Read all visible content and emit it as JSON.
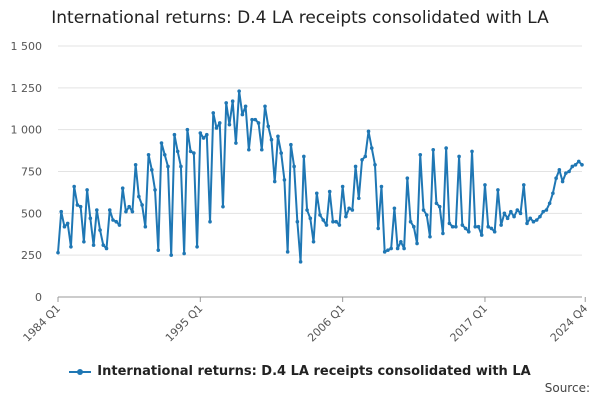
{
  "chart_data": {
    "type": "line",
    "title": "International returns: D.4 LA receipts consolidated with LA",
    "xlabel": "",
    "ylabel": "",
    "ylim": [
      0,
      1500
    ],
    "y_ticks": [
      0,
      250,
      500,
      750,
      1000,
      1250,
      1500
    ],
    "y_tick_labels": [
      "0",
      "250",
      "500",
      "750",
      "1 000",
      "1 250",
      "1 500"
    ],
    "x_tick_labels": [
      "1984 Q1",
      "1995 Q1",
      "2006 Q1",
      "2017 Q1",
      "2024 Q4"
    ],
    "x_range": [
      "1984 Q1",
      "2024 Q4"
    ],
    "grid": true,
    "legend_position": "bottom",
    "color": "#1f77b4",
    "source_label": "Source:",
    "series": [
      {
        "name": "International returns: D.4 LA receipts consolidated with LA",
        "values": [
          265,
          510,
          420,
          440,
          300,
          660,
          550,
          540,
          330,
          640,
          470,
          310,
          520,
          400,
          310,
          290,
          520,
          460,
          450,
          430,
          650,
          510,
          540,
          510,
          790,
          600,
          550,
          420,
          850,
          760,
          640,
          280,
          920,
          850,
          780,
          250,
          970,
          870,
          780,
          260,
          1000,
          870,
          860,
          300,
          980,
          950,
          970,
          450,
          1100,
          1010,
          1040,
          540,
          1160,
          1030,
          1170,
          920,
          1230,
          1090,
          1140,
          880,
          1060,
          1060,
          1040,
          880,
          1140,
          1020,
          940,
          690,
          960,
          860,
          700,
          270,
          910,
          780,
          450,
          210,
          840,
          520,
          470,
          330,
          620,
          490,
          460,
          430,
          630,
          450,
          450,
          430,
          660,
          480,
          530,
          520,
          780,
          590,
          820,
          840,
          990,
          890,
          790,
          410,
          660,
          270,
          280,
          290,
          530,
          290,
          330,
          290,
          710,
          450,
          420,
          320,
          850,
          520,
          490,
          360,
          880,
          560,
          540,
          380,
          890,
          440,
          420,
          420,
          840,
          430,
          410,
          390,
          870,
          420,
          420,
          370,
          670,
          420,
          410,
          390,
          640,
          430,
          500,
          470,
          510,
          480,
          520,
          500,
          670,
          440,
          470,
          450,
          460,
          480,
          510,
          520,
          560,
          620,
          710,
          760,
          690,
          740,
          750,
          780,
          790,
          810,
          790
        ]
      }
    ]
  }
}
